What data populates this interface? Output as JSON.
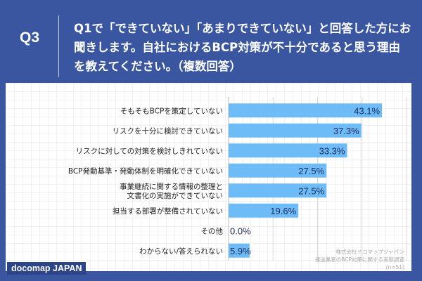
{
  "header": {
    "q_label": "Q3",
    "question": "Q1で「できていない」「あまりできていない」と回答した方にお聞きします。自社におけるBCP対策が不十分であると思う理由を教えてください。（複数回答）"
  },
  "footer": {
    "logo": "docomap JAPAN",
    "credit_lines": [
      "株式会社ドコマップジャパン",
      "運送業者のBCP対策に関する実態調査",
      "(n=51)"
    ]
  },
  "colors": {
    "bar": "#6ebcf7",
    "header_bg": "#3a56a0",
    "label": "#1e2a5a"
  },
  "chart_data": {
    "type": "bar",
    "orientation": "horizontal",
    "unit": "%",
    "xlim": [
      0,
      50
    ],
    "grid": true,
    "categories": [
      [
        "そもそもBCPを策定していない"
      ],
      [
        "リスクを十分に検討できていない"
      ],
      [
        "リスクに対しての対策を検討しきれていない"
      ],
      [
        "BCP発動基準・発動体制を明確化できていない"
      ],
      [
        "事業継続に関する情報の整理と",
        "文書化の実施ができていない"
      ],
      [
        "担当する部署が整備されていない"
      ],
      [
        "その他"
      ],
      [
        "わからない/答えられない"
      ]
    ],
    "values": [
      43.1,
      37.3,
      33.3,
      27.5,
      27.5,
      19.6,
      0.0,
      5.9
    ],
    "labels": [
      "43.1%",
      "37.3%",
      "33.3%",
      "27.5%",
      "27.5%",
      "19.6%",
      "0.0%",
      "5.9%"
    ]
  }
}
